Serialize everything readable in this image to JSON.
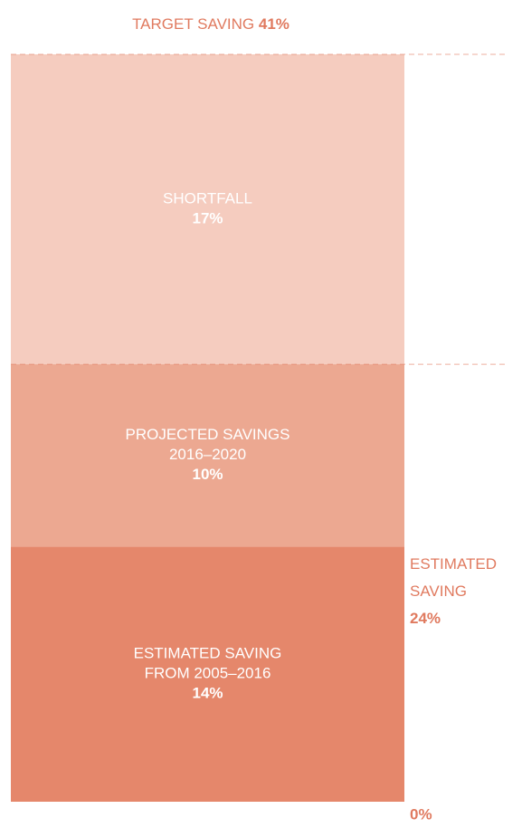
{
  "chart_data": {
    "type": "stacked-bar",
    "series": [
      {
        "name_lines": [
          "ESTIMATED SAVING",
          "FROM 2005–2016"
        ],
        "values": [
          14
        ],
        "value_labels": [
          "14%"
        ],
        "color": "#e5876b"
      },
      {
        "name_lines": [
          "PROJECTED SAVINGS",
          "2016–2020"
        ],
        "values": [
          10
        ],
        "value_labels": [
          "10%"
        ],
        "color": "#eca891"
      },
      {
        "name_lines": [
          "SHORTFALL"
        ],
        "values": [
          17
        ],
        "value_labels": [
          "17%"
        ],
        "color": "#f5ccbf"
      }
    ],
    "ylim": [
      0,
      41
    ],
    "yticks": [
      {
        "value": 0,
        "label": "0%"
      },
      {
        "value": 24,
        "label": "24%"
      },
      {
        "value": 41,
        "label": "41%"
      }
    ],
    "tick_titles": {
      "1": [
        "ESTIMATED",
        "SAVING"
      ],
      "2": [
        "TARGET SAVING"
      ]
    },
    "accent": "#e07a5f"
  }
}
